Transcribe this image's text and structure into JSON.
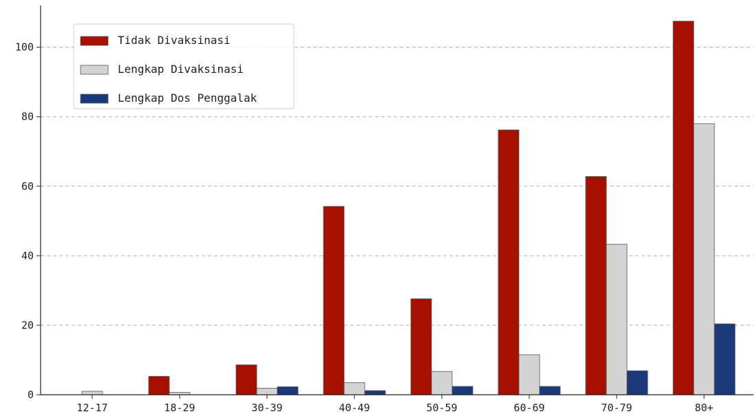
{
  "chart_data": {
    "type": "bar",
    "categories": [
      "12-17",
      "18-29",
      "30-39",
      "40-49",
      "50-59",
      "60-69",
      "70-79",
      "80+"
    ],
    "series": [
      {
        "name": "Tidak Divaksinasi",
        "color": "#a51000",
        "values": [
          0,
          5.3,
          8.6,
          54.2,
          27.6,
          76.2,
          62.8,
          107.5
        ]
      },
      {
        "name": "Lengkap Divaksinasi",
        "color": "#d3d3d3",
        "values": [
          1.0,
          0.7,
          1.9,
          3.5,
          6.7,
          11.5,
          43.3,
          78.0
        ]
      },
      {
        "name": "Lengkap Dos Penggalak",
        "color": "#1a3a7a",
        "values": [
          0,
          0,
          2.3,
          1.2,
          2.4,
          2.4,
          6.9,
          20.4
        ]
      }
    ],
    "yticks": [
      0,
      20,
      40,
      60,
      80,
      100
    ],
    "ylim": [
      0,
      112
    ],
    "grid": "y-dashed",
    "legend_position": "top-left"
  }
}
